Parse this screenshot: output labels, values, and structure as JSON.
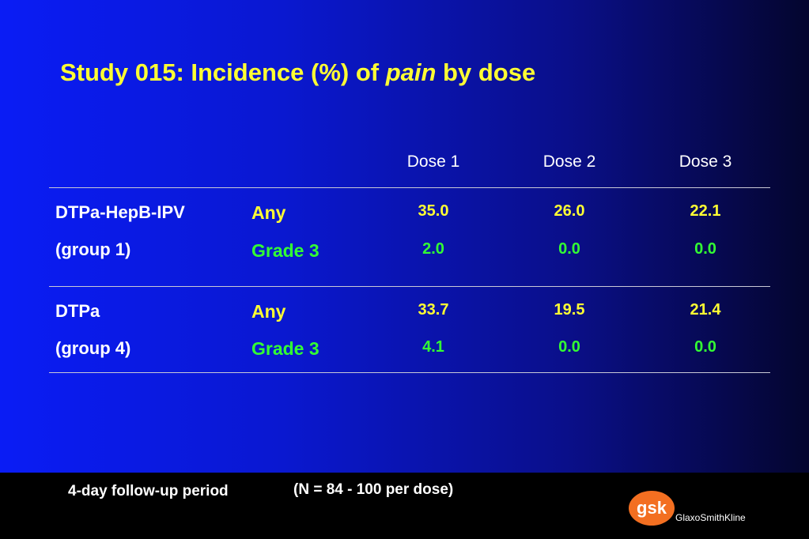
{
  "slide": {
    "title_prefix": "Study 015: Incidence (%) of ",
    "title_emphasis": "pain",
    "title_suffix": " by dose"
  },
  "table": {
    "columns": [
      "Dose 1",
      "Dose 2",
      "Dose 3"
    ],
    "groups": [
      {
        "name_line1": "DTPa-HepB-IPV",
        "name_line2": "(group 1)",
        "rows": [
          {
            "category": "Any",
            "values": [
              "35.0",
              "26.0",
              "22.1"
            ]
          },
          {
            "category": "Grade 3",
            "values": [
              "2.0",
              "0.0",
              "0.0"
            ]
          }
        ]
      },
      {
        "name_line1": "DTPa",
        "name_line2": "(group 4)",
        "rows": [
          {
            "category": "Any",
            "values": [
              "33.7",
              "19.5",
              "21.4"
            ]
          },
          {
            "category": "Grade 3",
            "values": [
              "4.1",
              "0.0",
              "0.0"
            ]
          }
        ]
      }
    ]
  },
  "footer": {
    "followup": "4-day follow-up period",
    "n_note": "(N = 84 - 100 per dose)",
    "logo_mark": "gsk",
    "logo_text": "GlaxoSmithKline"
  },
  "colors": {
    "title": "#ffff33",
    "any": "#ffff33",
    "grade3": "#33ff33",
    "background_start": "#0a1cf5",
    "background_end": "#04052e",
    "footer": "#000000",
    "logo_orange": "#f36f21"
  }
}
